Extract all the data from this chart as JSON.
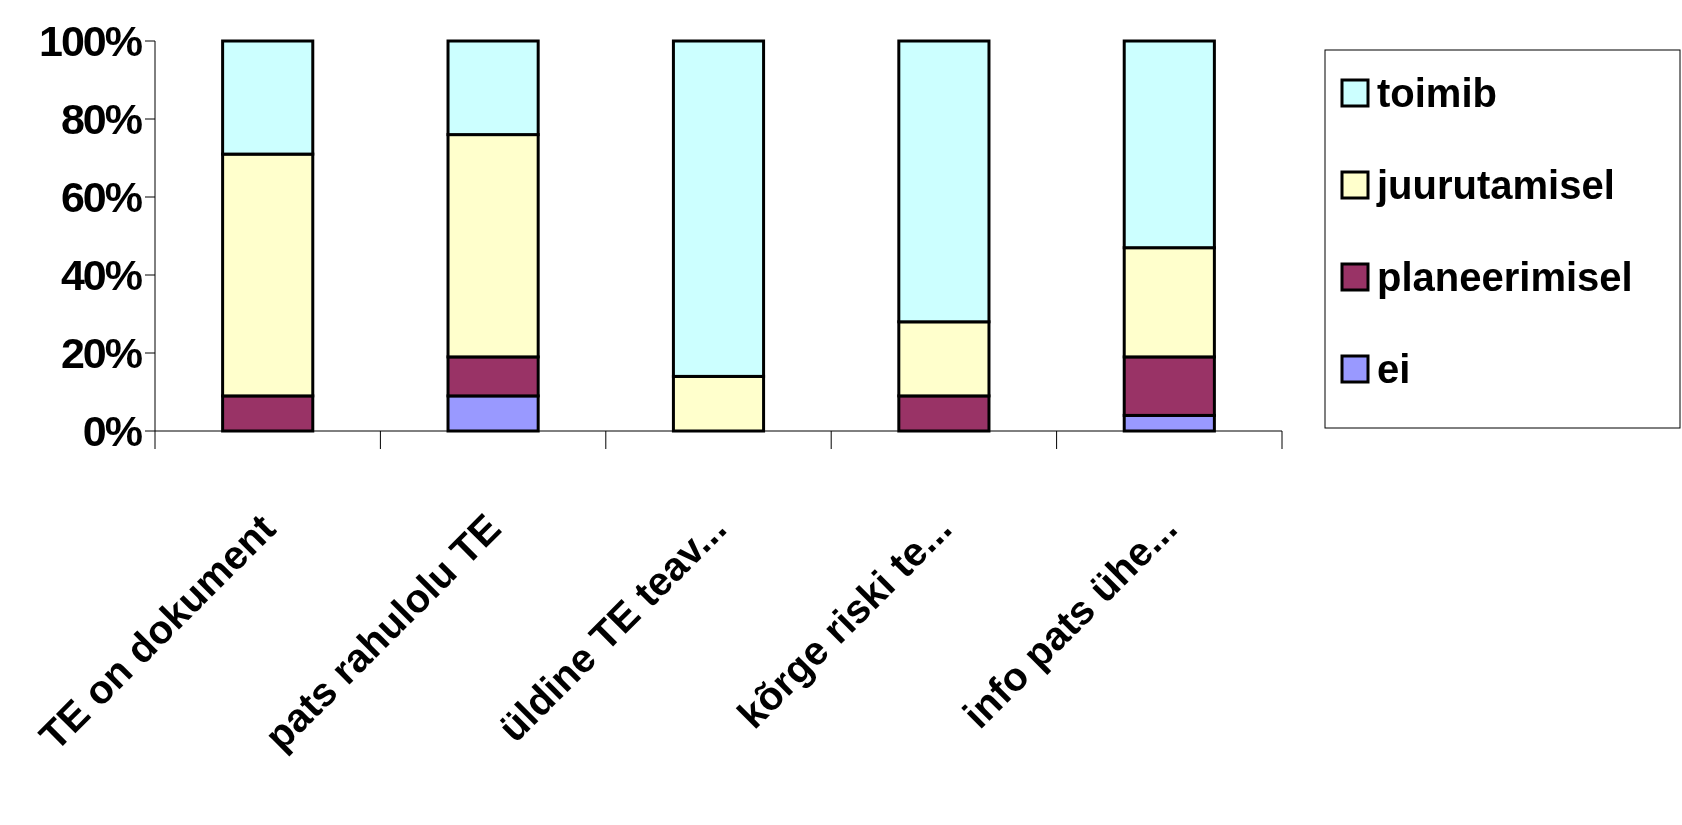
{
  "chart_data": {
    "type": "bar",
    "stacked": true,
    "categories": [
      "TE on dokument",
      "pats rahulolu TE",
      "üldine TE teav...",
      "kõrge riski te...",
      "info pats ühe..."
    ],
    "series": [
      {
        "name": "ei",
        "color": "#9999ff",
        "values": [
          0,
          9,
          0,
          0,
          4
        ]
      },
      {
        "name": "planeerimisel",
        "color": "#993366",
        "values": [
          9,
          10,
          0,
          9,
          15
        ]
      },
      {
        "name": "juurutamisel",
        "color": "#ffffcc",
        "values": [
          62,
          57,
          14,
          19,
          28
        ]
      },
      {
        "name": "toimib",
        "color": "#ccffff",
        "values": [
          29,
          24,
          86,
          72,
          53
        ]
      }
    ],
    "ylim": [
      0,
      100
    ],
    "yticks": [
      {
        "value": 0,
        "label": "0%"
      },
      {
        "value": 20,
        "label": "20%"
      },
      {
        "value": 40,
        "label": "40%"
      },
      {
        "value": 60,
        "label": "60%"
      },
      {
        "value": 80,
        "label": "80%"
      },
      {
        "value": 100,
        "label": "100%"
      }
    ],
    "grid": false,
    "legend": "right"
  }
}
